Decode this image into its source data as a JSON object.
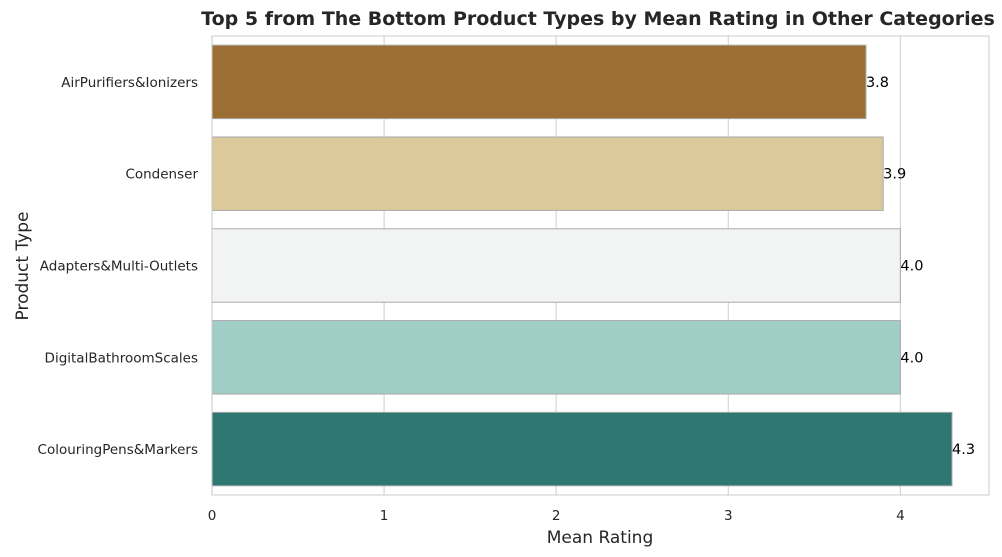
{
  "chart_data": {
    "type": "bar",
    "orientation": "horizontal",
    "title": "Top 5 from The Bottom Product Types by Mean Rating in Other Categories",
    "xlabel": "Mean Rating",
    "ylabel": "Product Type",
    "xlim": [
      0,
      4.515
    ],
    "xticks": [
      0,
      1,
      2,
      3,
      4
    ],
    "grid": true,
    "categories": [
      "AirPurifiers&Ionizers",
      "Condenser",
      "Adapters&Multi-Outlets",
      "DigitalBathroomScales",
      "ColouringPens&Markers"
    ],
    "values": [
      3.8,
      3.9,
      4.0,
      4.0,
      4.3
    ],
    "data_labels": [
      "3.8",
      "3.9",
      "4.0",
      "4.0",
      "4.3"
    ],
    "colors": [
      "#9b6e33",
      "#dbc99c",
      "#f2f4f3",
      "#a0cdc6",
      "#2f7871"
    ]
  }
}
